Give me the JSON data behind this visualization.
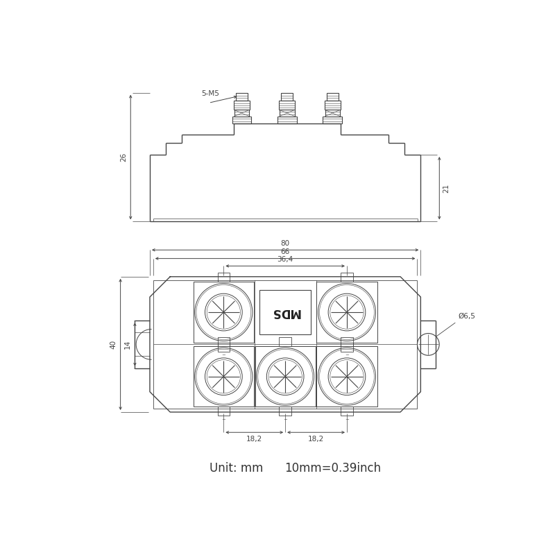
{
  "bg_color": "#ffffff",
  "line_color": "#444444",
  "line_width": 1.0,
  "fig_width": 8.0,
  "fig_height": 8.0,
  "unit_text1": "Unit: mm",
  "unit_text2": "10mm=0.39inch",
  "label_5M5": "5-M5",
  "dim_26": "26",
  "dim_21": "21",
  "dim_80": "80",
  "dim_66": "66",
  "dim_364": "36,4",
  "dim_40": "40",
  "dim_14": "14",
  "dim_65": "Ø6,5",
  "dim_182a": "18,2",
  "dim_182b": "18,2",
  "label_MDS": "MDS"
}
